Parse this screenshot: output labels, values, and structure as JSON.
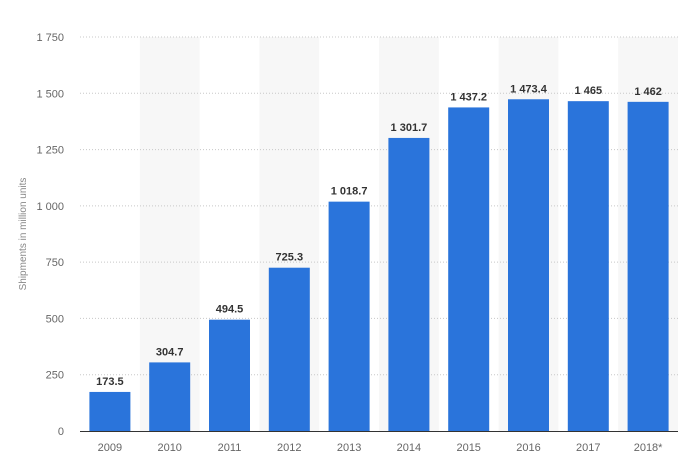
{
  "chart_data": {
    "type": "bar",
    "title": "",
    "xlabel": "",
    "ylabel": "Shipments in million units",
    "categories": [
      "2009",
      "2010",
      "2011",
      "2012",
      "2013",
      "2014",
      "2015",
      "2016",
      "2017",
      "2018*"
    ],
    "series": [
      {
        "values": [
          173.5,
          304.7,
          494.5,
          725.3,
          1018.7,
          1301.7,
          1437.2,
          1473.4,
          1465,
          1462
        ]
      }
    ],
    "data_labels": [
      "173.5",
      "304.7",
      "494.5",
      "725.3",
      "1 018.7",
      "1 301.7",
      "1 437.2",
      "1 473.4",
      "1 465",
      "1 462"
    ],
    "ylim": [
      0,
      1750
    ],
    "yticks": [
      0,
      250,
      500,
      750,
      1000,
      1250,
      1500,
      1750
    ],
    "ytick_labels": [
      "0",
      "250",
      "500",
      "750",
      "1 000",
      "1 250",
      "1 500",
      "1 750"
    ],
    "grid": true,
    "legend": "none",
    "colors": {
      "bar": "#2a74db",
      "grid": "#c8c8c8",
      "band": "#f7f7f7",
      "axis": "#333333"
    }
  }
}
